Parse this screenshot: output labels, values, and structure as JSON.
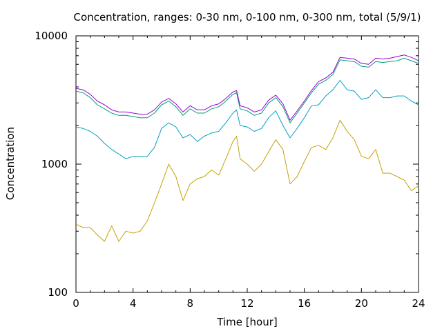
{
  "chart_data": {
    "type": "line",
    "title": "Concentration, ranges: 0-30 nm, 0-100 nm, 0-300 nm, total (5/9/1)",
    "xlabel": "Time [hour]",
    "ylabel": "Concentration",
    "xlim": [
      0,
      24
    ],
    "ylim": [
      100,
      10000
    ],
    "yscale": "log",
    "grid": false,
    "legend": "none",
    "x_ticks": [
      "0",
      "4",
      "8",
      "12",
      "16",
      "20",
      "24"
    ],
    "x_tick_values": [
      0,
      4,
      8,
      12,
      16,
      20,
      24
    ],
    "y_ticks": [
      "100",
      "1000",
      "10000"
    ],
    "y_tick_values": [
      100,
      1000,
      10000
    ],
    "x": [
      0,
      0.5,
      1,
      1.5,
      2,
      2.5,
      3,
      3.5,
      4,
      4.5,
      5,
      5.5,
      6,
      6.5,
      7,
      7.5,
      8,
      8.5,
      9,
      9.5,
      10,
      10.5,
      11,
      11.25,
      11.5,
      12,
      12.5,
      13,
      13.5,
      14,
      14.5,
      15,
      15.5,
      16,
      16.5,
      17,
      17.5,
      18,
      18.5,
      19,
      19.5,
      20,
      20.5,
      21,
      21.5,
      22,
      22.5,
      23,
      23.5,
      24
    ],
    "series": [
      {
        "color": "#c8a000",
        "values": [
          340,
          320,
          320,
          280,
          250,
          330,
          250,
          300,
          290,
          300,
          360,
          500,
          700,
          1000,
          800,
          520,
          700,
          770,
          800,
          900,
          820,
          1100,
          1500,
          1650,
          1100,
          1000,
          880,
          1000,
          1250,
          1550,
          1300,
          700,
          800,
          1050,
          1350,
          1400,
          1300,
          1600,
          2200,
          1800,
          1550,
          1150,
          1100,
          1300,
          850,
          850,
          800,
          750,
          620,
          680
        ]
      },
      {
        "color": "#00a0c0",
        "values": [
          1950,
          1900,
          1800,
          1650,
          1450,
          1300,
          1200,
          1100,
          1150,
          1150,
          1150,
          1350,
          1900,
          2100,
          1950,
          1600,
          1700,
          1500,
          1650,
          1750,
          1800,
          2100,
          2500,
          2650,
          2000,
          1950,
          1800,
          1900,
          2300,
          2600,
          2000,
          1600,
          1900,
          2300,
          2850,
          2900,
          3400,
          3800,
          4500,
          3800,
          3700,
          3200,
          3300,
          3800,
          3300,
          3300,
          3400,
          3400,
          3100,
          2900
        ]
      },
      {
        "color": "#009e73",
        "values": [
          3700,
          3600,
          3300,
          2900,
          2700,
          2500,
          2400,
          2400,
          2350,
          2300,
          2300,
          2500,
          2900,
          3100,
          2800,
          2400,
          2700,
          2500,
          2500,
          2700,
          2800,
          3100,
          3500,
          3600,
          2700,
          2600,
          2400,
          2500,
          3000,
          3300,
          2800,
          2100,
          2500,
          3000,
          3600,
          4200,
          4500,
          5000,
          6500,
          6400,
          6300,
          5800,
          5700,
          6300,
          6200,
          6300,
          6400,
          6700,
          6400,
          6100
        ]
      },
      {
        "color": "#9400d3",
        "values": [
          3900,
          3800,
          3500,
          3100,
          2900,
          2650,
          2550,
          2550,
          2500,
          2450,
          2450,
          2650,
          3050,
          3250,
          2950,
          2550,
          2850,
          2650,
          2650,
          2850,
          2950,
          3250,
          3650,
          3750,
          2850,
          2750,
          2550,
          2650,
          3150,
          3450,
          2950,
          2200,
          2600,
          3100,
          3750,
          4400,
          4700,
          5200,
          6800,
          6700,
          6600,
          6100,
          6000,
          6700,
          6600,
          6700,
          6900,
          7100,
          6800,
          6400
        ]
      }
    ]
  }
}
